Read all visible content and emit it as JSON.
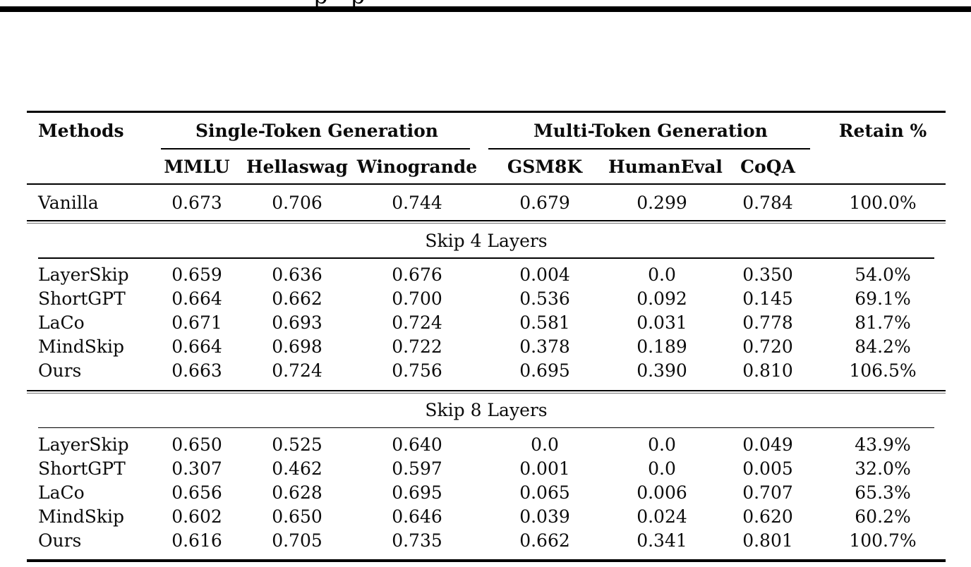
{
  "page": {
    "top_text_fragment": "p p"
  },
  "table": {
    "header": {
      "methods": "Methods",
      "group1": "Single-Token Generation",
      "group2": "Multi-Token Generation",
      "retain": "Retain %",
      "sub": [
        "MMLU",
        "Hellaswag",
        "Winogrande",
        "GSM8K",
        "HumanEval",
        "CoQA"
      ]
    },
    "baseline": {
      "method": "Vanilla",
      "values": [
        "0.673",
        "0.706",
        "0.744",
        "0.679",
        "0.299",
        "0.784",
        "100.0%"
      ]
    },
    "sections": [
      {
        "title": "Skip 4 Layers",
        "rows": [
          {
            "method": "LayerSkip",
            "values": [
              "0.659",
              "0.636",
              "0.676",
              "0.004",
              "0.0",
              "0.350",
              "54.0%"
            ]
          },
          {
            "method": "ShortGPT",
            "values": [
              "0.664",
              "0.662",
              "0.700",
              "0.536",
              "0.092",
              "0.145",
              "69.1%"
            ]
          },
          {
            "method": "LaCo",
            "values": [
              "0.671",
              "0.693",
              "0.724",
              "0.581",
              "0.031",
              "0.778",
              "81.7%"
            ]
          },
          {
            "method": "MindSkip",
            "values": [
              "0.664",
              "0.698",
              "0.722",
              "0.378",
              "0.189",
              "0.720",
              "84.2%"
            ]
          },
          {
            "method": "Ours",
            "values": [
              "0.663",
              "0.724",
              "0.756",
              "0.695",
              "0.390",
              "0.810",
              "106.5%"
            ]
          }
        ]
      },
      {
        "title": "Skip 8 Layers",
        "rows": [
          {
            "method": "LayerSkip",
            "values": [
              "0.650",
              "0.525",
              "0.640",
              "0.0",
              "0.0",
              "0.049",
              "43.9%"
            ]
          },
          {
            "method": "ShortGPT",
            "values": [
              "0.307",
              "0.462",
              "0.597",
              "0.001",
              "0.0",
              "0.005",
              "32.0%"
            ]
          },
          {
            "method": "LaCo",
            "values": [
              "0.656",
              "0.628",
              "0.695",
              "0.065",
              "0.006",
              "0.707",
              "65.3%"
            ]
          },
          {
            "method": "MindSkip",
            "values": [
              "0.602",
              "0.650",
              "0.646",
              "0.039",
              "0.024",
              "0.620",
              "60.2%"
            ]
          },
          {
            "method": "Ours",
            "values": [
              "0.616",
              "0.705",
              "0.735",
              "0.662",
              "0.341",
              "0.801",
              "100.7%"
            ]
          }
        ]
      }
    ]
  }
}
